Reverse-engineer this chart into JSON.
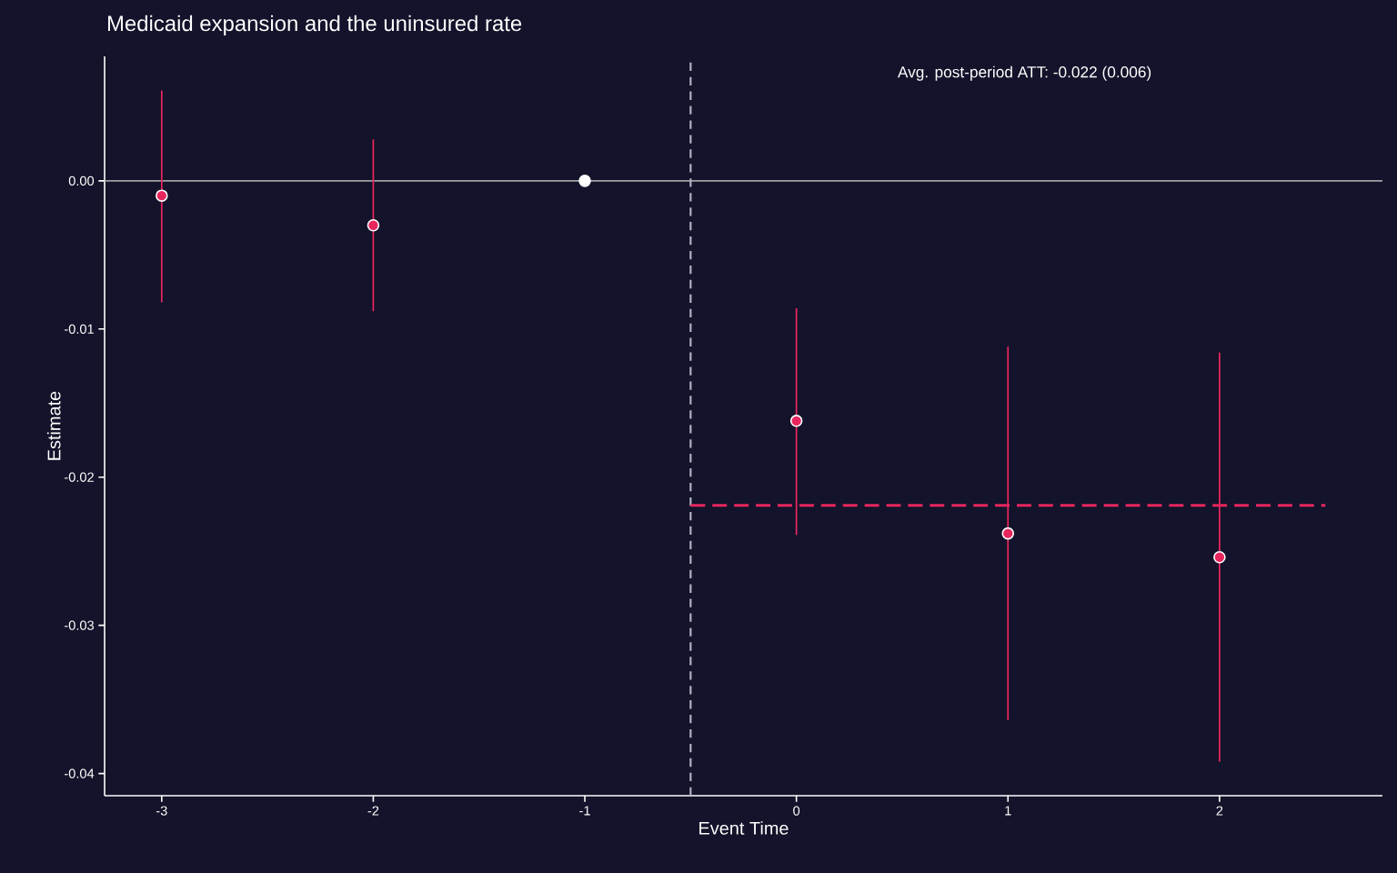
{
  "chart_data": {
    "type": "scatter",
    "title": "Medicaid expansion and the uninsured rate",
    "xlabel": "Event Time",
    "ylabel": "Estimate",
    "annotations": [
      "Avg. post-period ATT: -0.022 (0.006)"
    ],
    "x": [
      -3,
      -2,
      -1,
      0,
      1,
      2
    ],
    "series": [
      {
        "color": "#e8265e",
        "colors": [
          "#e8265e",
          "#e8265e",
          "#ffffff",
          "#e8265e",
          "#e8265e",
          "#e8265e"
        ],
        "values": [
          -0.001,
          -0.003,
          0,
          -0.0162,
          -0.0238,
          -0.0254
        ],
        "errors": [
          [
            -0.0082,
            0.0061
          ],
          [
            -0.0088,
            0.0028
          ],
          null,
          [
            -0.0239,
            -0.0086
          ],
          [
            -0.0364,
            -0.0112
          ],
          [
            -0.0392,
            -0.0116
          ]
        ],
        "marker": "circle"
      },
      {
        "type": "line",
        "color": "#e8265e",
        "x": [
          -0.5,
          2.5
        ],
        "values": [
          -0.0219,
          -0.0219
        ],
        "line_style": "dashed",
        "marker": "none"
      }
    ],
    "ref_lines": [
      {
        "axis": "y",
        "value": 0,
        "color": "#a0a0a8",
        "line_style": "solid"
      },
      {
        "axis": "x",
        "value": -0.5,
        "color": "#b4b4c8",
        "line_style": "dashed"
      }
    ],
    "xlim": [
      -3.27,
      2.77
    ],
    "ylim": [
      -0.0415,
      0.0084
    ],
    "xticks": [
      -3,
      -2,
      -1,
      0,
      1,
      2
    ],
    "yticks": [
      {
        "value": 0,
        "label": "0.00"
      },
      {
        "value": -0.01,
        "label": "-0.01"
      },
      {
        "value": -0.02,
        "label": "-0.02"
      },
      {
        "value": -0.03,
        "label": "-0.03"
      },
      {
        "value": -0.04,
        "label": "-0.04"
      }
    ]
  }
}
